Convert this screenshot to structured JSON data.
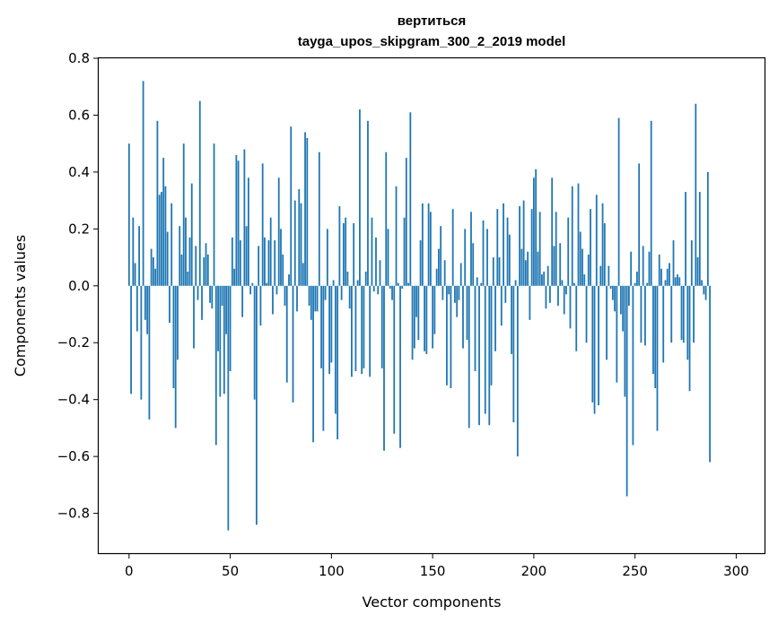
{
  "chart_data": {
    "type": "bar",
    "title": "вертиться",
    "subtitle": "tayga_upos_skipgram_300_2_2019 model",
    "xlabel": "Vector components",
    "ylabel": "Components values",
    "xlim": [
      -15,
      314
    ],
    "ylim": [
      -0.94,
      0.8
    ],
    "xticks": [
      0,
      50,
      100,
      150,
      200,
      250,
      300
    ],
    "xtick_labels": [
      "0",
      "50",
      "100",
      "150",
      "200",
      "250",
      "300"
    ],
    "yticks": [
      0.8,
      0.6,
      0.4,
      0.2,
      0.0,
      -0.2,
      -0.4,
      -0.6,
      -0.8
    ],
    "ytick_labels": [
      "0.8",
      "0.6",
      "0.4",
      "0.2",
      "0.0",
      "−0.2",
      "−0.4",
      "−0.6",
      "−0.8"
    ],
    "bar_color": "#1f77b4",
    "grid": false,
    "values": [
      0.5,
      -0.38,
      0.24,
      0.08,
      -0.16,
      0.21,
      -0.4,
      0.72,
      -0.12,
      -0.17,
      -0.47,
      0.13,
      0.1,
      0.06,
      0.58,
      0.32,
      0.33,
      0.45,
      0.35,
      0.19,
      -0.13,
      0.29,
      -0.36,
      -0.5,
      -0.26,
      0.21,
      0.11,
      0.5,
      0.24,
      0.05,
      0.17,
      0.36,
      -0.22,
      0.14,
      -0.05,
      0.65,
      -0.12,
      0.1,
      0.15,
      0.11,
      -0.06,
      -0.08,
      0.5,
      -0.56,
      -0.23,
      -0.39,
      -0.07,
      -0.38,
      -0.17,
      -0.86,
      -0.3,
      0.17,
      0.06,
      0.46,
      0.44,
      0.16,
      -0.11,
      0.48,
      0.21,
      0.38,
      -0.03,
      0.01,
      -0.4,
      -0.84,
      0.14,
      -0.14,
      0.43,
      0.17,
      0.01,
      0.16,
      0.24,
      -0.1,
      0.16,
      -0.03,
      0.38,
      0.2,
      0.11,
      -0.07,
      -0.34,
      0.04,
      0.56,
      -0.41,
      0.3,
      -0.09,
      0.34,
      0.29,
      0.08,
      0.54,
      0.52,
      -0.07,
      -0.12,
      -0.55,
      -0.09,
      -0.09,
      0.47,
      -0.29,
      -0.51,
      -0.05,
      0.2,
      -0.31,
      -0.27,
      0.02,
      -0.45,
      -0.54,
      0.28,
      -0.05,
      0.22,
      0.24,
      0.05,
      -0.08,
      -0.32,
      0.22,
      -0.3,
      0.02,
      0.62,
      -0.31,
      -0.29,
      0.05,
      0.58,
      -0.32,
      0.24,
      -0.02,
      0.17,
      -0.03,
      0.09,
      -0.29,
      -0.58,
      0.47,
      0.2,
      -0.01,
      -0.05,
      -0.52,
      0.35,
      0.01,
      -0.57,
      -0.01,
      0.24,
      0.45,
      0.01,
      0.61,
      -0.26,
      -0.22,
      -0.11,
      -0.19,
      0.16,
      0.29,
      -0.23,
      -0.24,
      0.29,
      0.26,
      -0.22,
      -0.17,
      0.06,
      0.13,
      0.21,
      -0.05,
      0.09,
      -0.35,
      -0.03,
      -0.36,
      0.27,
      -0.06,
      -0.11,
      -0.05,
      0.08,
      -0.22,
      0.2,
      -0.19,
      -0.5,
      0.26,
      0.15,
      -0.3,
      0.03,
      -0.49,
      0.01,
      0.23,
      -0.45,
      0.2,
      -0.49,
      -0.35,
      0.1,
      -0.23,
      0.27,
      0.1,
      -0.14,
      0.29,
      -0.06,
      0.24,
      0.18,
      -0.24,
      -0.48,
      0.02,
      -0.6,
      0.28,
      0.13,
      0.3,
      0.09,
      0.12,
      -0.12,
      0.27,
      0.38,
      0.41,
      0.12,
      0.26,
      0.04,
      0.05,
      -0.08,
      0.07,
      -0.06,
      0.38,
      0.14,
      0.26,
      -0.07,
      0.15,
      0.02,
      -0.1,
      -0.03,
      0.24,
      -0.15,
      0.35,
      0.01,
      -0.23,
      0.36,
      0.19,
      0.13,
      0.04,
      -0.2,
      0.11,
      0.27,
      -0.41,
      -0.45,
      0.32,
      -0.42,
      0.07,
      0.29,
      0.22,
      -0.26,
      0.07,
      -0.01,
      -0.05,
      -0.09,
      -0.34,
      0.59,
      -0.1,
      -0.16,
      -0.39,
      -0.74,
      -0.07,
      0.12,
      -0.56,
      0.01,
      0.05,
      0.43,
      -0.2,
      0.14,
      -0.21,
      0.01,
      0.12,
      0.58,
      -0.31,
      -0.36,
      -0.51,
      0.11,
      0.06,
      -0.27,
      0.02,
      0.06,
      0.08,
      -0.2,
      0.16,
      0.03,
      0.04,
      0.03,
      -0.19,
      -0.2,
      0.33,
      -0.26,
      -0.37,
      0.16,
      -0.2,
      0.64,
      0.1,
      0.33,
      0.02,
      -0.03,
      -0.05,
      0.4,
      -0.62
    ]
  }
}
